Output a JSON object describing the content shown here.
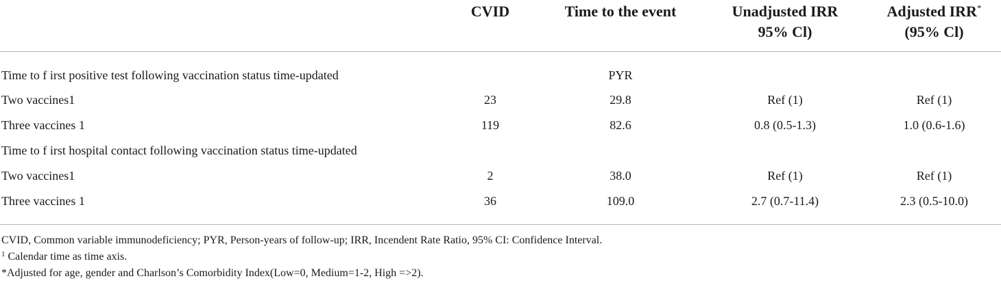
{
  "header": {
    "col_cvid": "CVID",
    "col_time": "Time to the event",
    "col_unadj_line1": "Unadjusted IRR",
    "col_unadj_line2": "95% Cl)",
    "col_adj_line1": "Adjusted IRR",
    "col_adj_marker": "*",
    "col_adj_line2": "(95% Cl)"
  },
  "sections": [
    {
      "title": "Time to f irst positive test following vaccination status time-updated",
      "unit": "PYR",
      "rows": [
        {
          "label": "Two vaccines1",
          "cvid": "23",
          "time": "29.8",
          "unadjusted": "Ref (1)",
          "adjusted": "Ref (1)"
        },
        {
          "label": "Three vaccines 1",
          "cvid": "119",
          "time": "82.6",
          "unadjusted": "0.8 (0.5-1.3)",
          "adjusted": "1.0 (0.6-1.6)"
        }
      ]
    },
    {
      "title": "Time to f irst hospital contact following vaccination status time-updated",
      "unit": "",
      "rows": [
        {
          "label": "Two vaccines1",
          "cvid": "2",
          "time": "38.0",
          "unadjusted": "Ref (1)",
          "adjusted": "Ref (1)"
        },
        {
          "label": "Three vaccines 1",
          "cvid": "36",
          "time": "109.0",
          "unadjusted": "2.7 (0.7-11.4)",
          "adjusted": "2.3 (0.5-10.0)"
        }
      ]
    }
  ],
  "footnotes": {
    "abbreviations": "CVID, Common variable immunodeficiency; PYR, Person-years of follow-up; IRR, Incendent Rate Ratio, 95% CI: Confidence Interval.",
    "note1_marker": "1",
    "note1_text": " Calendar time as time axis.",
    "note2_text": "*Adjusted for age, gender and Charlson’s Comorbidity Index(Low=0, Medium=1-2, High =>2)."
  }
}
